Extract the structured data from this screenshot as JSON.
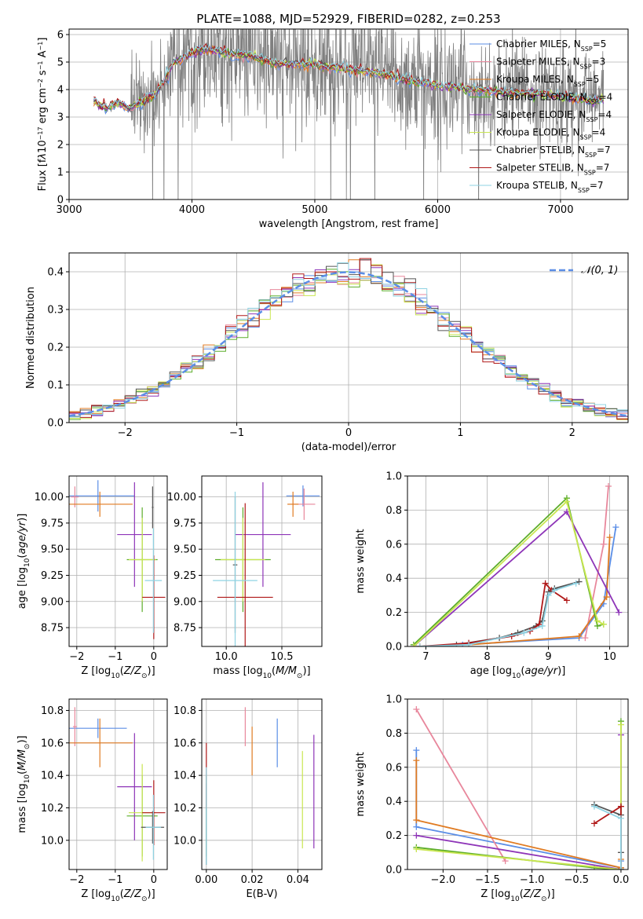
{
  "figure": {
    "title": "PLATE=1088, MJD=52929, FIBERID=0282, z=0.253"
  },
  "models": [
    {
      "name": "Chabrier MILES",
      "nssp": "5",
      "color": "#5b8ee6"
    },
    {
      "name": "Salpeter MILES",
      "nssp": "3",
      "color": "#e8879c"
    },
    {
      "name": "Kroupa MILES",
      "nssp": "5",
      "color": "#e07b22"
    },
    {
      "name": "Chabrier ELODIE",
      "nssp": "4",
      "color": "#5cad2a"
    },
    {
      "name": "Salpeter ELODIE",
      "nssp": "4",
      "color": "#8e35b8"
    },
    {
      "name": "Kroupa ELODIE",
      "nssp": "4",
      "color": "#c9e650"
    },
    {
      "name": "Chabrier STELIB",
      "nssp": "7",
      "color": "#555555"
    },
    {
      "name": "Salpeter STELIB",
      "nssp": "7",
      "color": "#b01818"
    },
    {
      "name": "Kroupa STELIB",
      "nssp": "7",
      "color": "#8fd3e3"
    }
  ],
  "chart_data": [
    {
      "id": "spectrum",
      "type": "line",
      "xlabel": "wavelength [Angstrom, rest frame]",
      "ylabel_html": "Flux [f<tspan font-style='italic'>λ</tspan>10<tspan baseline-shift='super' font-size='8'>−17</tspan> erg cm<tspan baseline-shift='super' font-size='8'>−2</tspan> s<tspan baseline-shift='super' font-size='8'>−1</tspan> A<tspan baseline-shift='super' font-size='8'>−1</tspan>]",
      "xlim": [
        3000,
        7550
      ],
      "ylim": [
        0,
        6.2
      ],
      "xticks": [
        3000,
        4000,
        5000,
        6000,
        7000
      ],
      "yticks": [
        0,
        1,
        2,
        3,
        4,
        5,
        6
      ],
      "data_range": [
        3200,
        7350
      ],
      "model_trend": [
        [
          3200,
          3.6
        ],
        [
          3300,
          3.3
        ],
        [
          3400,
          3.5
        ],
        [
          3500,
          3.3
        ],
        [
          3600,
          3.6
        ],
        [
          3700,
          3.8
        ],
        [
          3800,
          4.5
        ],
        [
          3850,
          5.0
        ],
        [
          3950,
          5.2
        ],
        [
          4100,
          5.5
        ],
        [
          4300,
          5.3
        ],
        [
          4500,
          5.2
        ],
        [
          4700,
          4.9
        ],
        [
          4900,
          4.95
        ],
        [
          5200,
          4.8
        ],
        [
          5500,
          4.6
        ],
        [
          5800,
          4.3
        ],
        [
          6000,
          4.15
        ],
        [
          6300,
          4.0
        ],
        [
          6600,
          3.9
        ],
        [
          6900,
          3.8
        ],
        [
          7200,
          3.65
        ],
        [
          7350,
          3.6
        ]
      ]
    },
    {
      "id": "residuals",
      "type": "bar",
      "xlabel": "(data-model)/error",
      "ylabel": "Normed distribution",
      "xlim": [
        -2.5,
        2.5
      ],
      "ylim": [
        0,
        0.45
      ],
      "xticks": [
        -2,
        -1,
        0,
        1,
        2
      ],
      "yticks": [
        0.0,
        0.1,
        0.2,
        0.3,
        0.4
      ],
      "bin_width": 0.1,
      "gaussian_label": "𝒩(0, 1)",
      "gaussian_color": "#5b8ee6"
    },
    {
      "id": "age-vs-Z",
      "type": "scatter",
      "xlabel_html": "Z [log<tspan baseline-shift='sub' font-size='9'>10</tspan>(<tspan font-style='italic'>Z/Z</tspan><tspan baseline-shift='sub' font-size='9'>⊙</tspan>)]",
      "ylabel_html": "age  [log<tspan baseline-shift='sub' font-size='9'>10</tspan>(<tspan font-style='italic'>age/yr</tspan>)]",
      "xlim": [
        -2.2,
        0.35
      ],
      "ylim": [
        8.57,
        10.2
      ],
      "xticks": [
        -2,
        -1,
        0
      ],
      "yticks": [
        8.75,
        9.0,
        9.25,
        9.5,
        9.75,
        10.0
      ],
      "points": [
        {
          "x": -1.45,
          "xerr": 0.95,
          "y": 10.01,
          "yerr": 0.15,
          "model": 0
        },
        {
          "x": -2.05,
          "xerr": 0.1,
          "y": 10.0,
          "yerr": 0.1,
          "model": 1
        },
        {
          "x": -1.4,
          "xerr": 0.85,
          "y": 9.93,
          "yerr": 0.12,
          "model": 2
        },
        {
          "x": -0.3,
          "xerr": 0.4,
          "y": 9.4,
          "yerr": 0.5,
          "model": 3
        },
        {
          "x": -0.5,
          "xerr": 0.45,
          "y": 9.64,
          "yerr": 0.5,
          "model": 4
        },
        {
          "x": -0.3,
          "xerr": 0.35,
          "y": 9.4,
          "yerr": 0.4,
          "model": 5
        },
        {
          "x": -0.03,
          "xerr": 0.02,
          "y": 9.9,
          "yerr": 0.2,
          "model": 6
        },
        {
          "x": 0.0,
          "xerr": 0.3,
          "y": 9.04,
          "yerr": 0.4,
          "model": 7
        },
        {
          "x": -0.01,
          "xerr": 0.22,
          "y": 9.2,
          "yerr": 0.5,
          "model": 8
        }
      ]
    },
    {
      "id": "age-vs-mass",
      "type": "scatter",
      "xlabel_html": "mass [log<tspan baseline-shift='sub' font-size='9'>10</tspan>(<tspan font-style='italic'>M/M</tspan><tspan baseline-shift='sub' font-size='9'>⊙</tspan>)]",
      "ylabel_html": "",
      "xlim": [
        9.78,
        10.86
      ],
      "ylim": [
        8.57,
        10.2
      ],
      "xticks": [
        10.0,
        10.5
      ],
      "yticks": [
        8.75,
        9.0,
        9.25,
        9.5,
        9.75,
        10.0
      ],
      "points": [
        {
          "x": 10.69,
          "xerr": 0.15,
          "y": 10.01,
          "yerr": 0.1,
          "model": 0
        },
        {
          "x": 10.7,
          "xerr": 0.1,
          "y": 9.93,
          "yerr": 0.15,
          "model": 1
        },
        {
          "x": 10.6,
          "xerr": 0.05,
          "y": 9.93,
          "yerr": 0.12,
          "model": 2
        },
        {
          "x": 10.15,
          "xerr": 0.25,
          "y": 9.4,
          "yerr": 0.5,
          "model": 3
        },
        {
          "x": 10.33,
          "xerr": 0.25,
          "y": 9.64,
          "yerr": 0.5,
          "model": 4
        },
        {
          "x": 10.15,
          "xerr": 0.2,
          "y": 9.4,
          "yerr": 0.4,
          "model": 5
        },
        {
          "x": 10.08,
          "xerr": 0.02,
          "y": 9.35,
          "yerr": 0.65,
          "model": 6
        },
        {
          "x": 10.17,
          "xerr": 0.25,
          "y": 9.04,
          "yerr": 0.9,
          "model": 7
        },
        {
          "x": 10.08,
          "xerr": 0.2,
          "y": 9.2,
          "yerr": 0.85,
          "model": 8
        }
      ]
    },
    {
      "id": "weight-vs-age",
      "type": "line",
      "xlabel_html": "age  [log<tspan baseline-shift='sub' font-size='9'>10</tspan>(<tspan font-style='italic'>age/yr</tspan>)]",
      "ylabel": "mass weight",
      "xlim": [
        6.7,
        10.3
      ],
      "ylim": [
        0,
        1.0
      ],
      "xticks": [
        7,
        8,
        9,
        10
      ],
      "yticks": [
        0.0,
        0.2,
        0.4,
        0.6,
        0.8,
        1.0
      ],
      "series": [
        {
          "model": 0,
          "x": [
            7.6,
            9.5,
            9.9,
            10.1
          ],
          "y": [
            0.01,
            0.05,
            0.25,
            0.7
          ]
        },
        {
          "model": 1,
          "x": [
            9.6,
            9.9,
            9.98
          ],
          "y": [
            0.05,
            0.6,
            0.94
          ]
        },
        {
          "model": 2,
          "x": [
            7.7,
            9.5,
            9.95,
            10.0
          ],
          "y": [
            0.01,
            0.06,
            0.29,
            0.64
          ]
        },
        {
          "model": 3,
          "x": [
            6.8,
            9.3,
            9.8,
            9.9
          ],
          "y": [
            0.01,
            0.87,
            0.12,
            0.13
          ]
        },
        {
          "model": 4,
          "x": [
            6.8,
            9.3,
            10.15
          ],
          "y": [
            0.0,
            0.79,
            0.2
          ]
        },
        {
          "model": 5,
          "x": [
            6.8,
            9.3,
            9.8,
            9.9
          ],
          "y": [
            0.0,
            0.85,
            0.15,
            0.13
          ]
        },
        {
          "model": 6,
          "x": [
            6.9,
            7.5,
            8.2,
            8.5,
            8.8,
            8.9,
            9.0,
            9.1,
            9.5
          ],
          "y": [
            0.0,
            0.01,
            0.05,
            0.08,
            0.12,
            0.15,
            0.32,
            0.34,
            0.38
          ]
        },
        {
          "model": 7,
          "x": [
            6.9,
            7.7,
            8.4,
            8.7,
            8.85,
            8.95,
            9.05,
            9.3
          ],
          "y": [
            0.0,
            0.02,
            0.06,
            0.09,
            0.13,
            0.37,
            0.33,
            0.27
          ]
        },
        {
          "model": 8,
          "x": [
            6.9,
            7.7,
            8.6,
            8.9,
            9.0,
            9.1,
            9.45
          ],
          "y": [
            0.0,
            0.01,
            0.08,
            0.12,
            0.3,
            0.33,
            0.37
          ]
        }
      ]
    },
    {
      "id": "mass-vs-Z",
      "type": "scatter",
      "xlabel_html": "Z [log<tspan baseline-shift='sub' font-size='9'>10</tspan>(<tspan font-style='italic'>Z/Z</tspan><tspan baseline-shift='sub' font-size='9'>⊙</tspan>)]",
      "ylabel_html": "mass [log<tspan baseline-shift='sub' font-size='9'>10</tspan>(<tspan font-style='italic'>M/M</tspan><tspan baseline-shift='sub' font-size='9'>⊙</tspan>)]",
      "xlim": [
        -2.2,
        0.35
      ],
      "ylim": [
        9.82,
        10.87
      ],
      "xticks": [
        -2,
        -1,
        0
      ],
      "yticks": [
        10.0,
        10.2,
        10.4,
        10.6,
        10.8
      ],
      "points": [
        {
          "x": -1.45,
          "xerr": 0.75,
          "y": 10.69,
          "yerr": 0.06,
          "model": 0
        },
        {
          "x": -2.05,
          "xerr": 0.05,
          "y": 10.7,
          "yerr": 0.12,
          "model": 1
        },
        {
          "x": -1.4,
          "xerr": 0.85,
          "y": 10.6,
          "yerr": 0.15,
          "model": 2
        },
        {
          "x": -0.3,
          "xerr": 0.4,
          "y": 10.15,
          "yerr": 0.25,
          "model": 3
        },
        {
          "x": -0.5,
          "xerr": 0.45,
          "y": 10.33,
          "yerr": 0.33,
          "model": 4
        },
        {
          "x": -0.3,
          "xerr": 0.35,
          "y": 10.17,
          "yerr": 0.3,
          "model": 5
        },
        {
          "x": -0.03,
          "xerr": 0.3,
          "y": 10.08,
          "yerr": 0.1,
          "model": 6
        },
        {
          "x": 0.0,
          "xerr": 0.3,
          "y": 10.17,
          "yerr": 0.2,
          "model": 7
        },
        {
          "x": -0.01,
          "xerr": 0.2,
          "y": 10.08,
          "yerr": 0.2,
          "model": 8
        }
      ]
    },
    {
      "id": "mass-vs-EBV",
      "type": "scatter",
      "xlabel": "E(B-V)",
      "ylabel_html": "",
      "xlim": [
        -0.002,
        0.0505
      ],
      "ylim": [
        9.82,
        10.87
      ],
      "xticks": [
        0.0,
        0.02,
        0.04
      ],
      "yticks": [
        10.0,
        10.2,
        10.4,
        10.6,
        10.8
      ],
      "points": [
        {
          "x": 0.031,
          "xerr": 0,
          "y": 10.6,
          "yerr": 0.15,
          "model": 0
        },
        {
          "x": 0.017,
          "xerr": 0,
          "y": 10.7,
          "yerr": 0.12,
          "model": 1
        },
        {
          "x": 0.02,
          "xerr": 0,
          "y": 10.55,
          "yerr": 0.15,
          "model": 2
        },
        {
          "x": 0.0,
          "xerr": 0,
          "y": 10.15,
          "yerr": 0.25,
          "model": 3
        },
        {
          "x": 0.047,
          "xerr": 0,
          "y": 10.3,
          "yerr": 0.35,
          "model": 4
        },
        {
          "x": 0.042,
          "xerr": 0,
          "y": 10.25,
          "yerr": 0.3,
          "model": 5
        },
        {
          "x": 0.0,
          "xerr": 0,
          "y": 10.1,
          "yerr": 0.25,
          "model": 6
        },
        {
          "x": 0.0,
          "xerr": 0,
          "y": 10.4,
          "yerr": 0.2,
          "model": 7
        },
        {
          "x": 0.0,
          "xerr": 0,
          "y": 10.15,
          "yerr": 0.3,
          "model": 8
        }
      ]
    },
    {
      "id": "weight-vs-Z",
      "type": "line",
      "xlabel_html": "Z [log<tspan baseline-shift='sub' font-size='9'>10</tspan>(<tspan font-style='italic'>Z/Z</tspan><tspan baseline-shift='sub' font-size='9'>⊙</tspan>)]",
      "ylabel": "mass weight",
      "xlim": [
        -2.4,
        0.08
      ],
      "ylim": [
        0,
        1.0
      ],
      "xticks": [
        -2.0,
        -1.5,
        -1.0,
        -0.5,
        0.0
      ],
      "yticks": [
        0.0,
        0.2,
        0.4,
        0.6,
        0.8,
        1.0
      ],
      "series": [
        {
          "model": 0,
          "x": [
            -2.3,
            -2.3,
            0.0,
            0.0
          ],
          "y": [
            0.7,
            0.25,
            0.01,
            0.05
          ]
        },
        {
          "model": 1,
          "x": [
            -2.3,
            -1.3
          ],
          "y": [
            0.94,
            0.05
          ]
        },
        {
          "model": 2,
          "x": [
            -2.3,
            -2.3,
            0.0,
            0.0
          ],
          "y": [
            0.64,
            0.29,
            0.01,
            0.06
          ]
        },
        {
          "model": 3,
          "x": [
            -2.3,
            -0.3,
            0.0,
            0.0
          ],
          "y": [
            0.13,
            0.01,
            0.0,
            0.87
          ]
        },
        {
          "model": 4,
          "x": [
            -2.3,
            0.0,
            0.0
          ],
          "y": [
            0.2,
            0.0,
            0.79
          ]
        },
        {
          "model": 5,
          "x": [
            -2.3,
            0.0,
            0.0
          ],
          "y": [
            0.12,
            0.0,
            0.85
          ]
        },
        {
          "model": 6,
          "x": [
            -0.3,
            0.0,
            0.0,
            0.0
          ],
          "y": [
            0.38,
            0.32,
            0.0,
            0.1
          ]
        },
        {
          "model": 7,
          "x": [
            -0.3,
            0.0,
            0.0
          ],
          "y": [
            0.27,
            0.37,
            0.0
          ]
        },
        {
          "model": 8,
          "x": [
            -0.3,
            0.0,
            0.0
          ],
          "y": [
            0.37,
            0.3,
            0.0
          ]
        }
      ]
    }
  ]
}
